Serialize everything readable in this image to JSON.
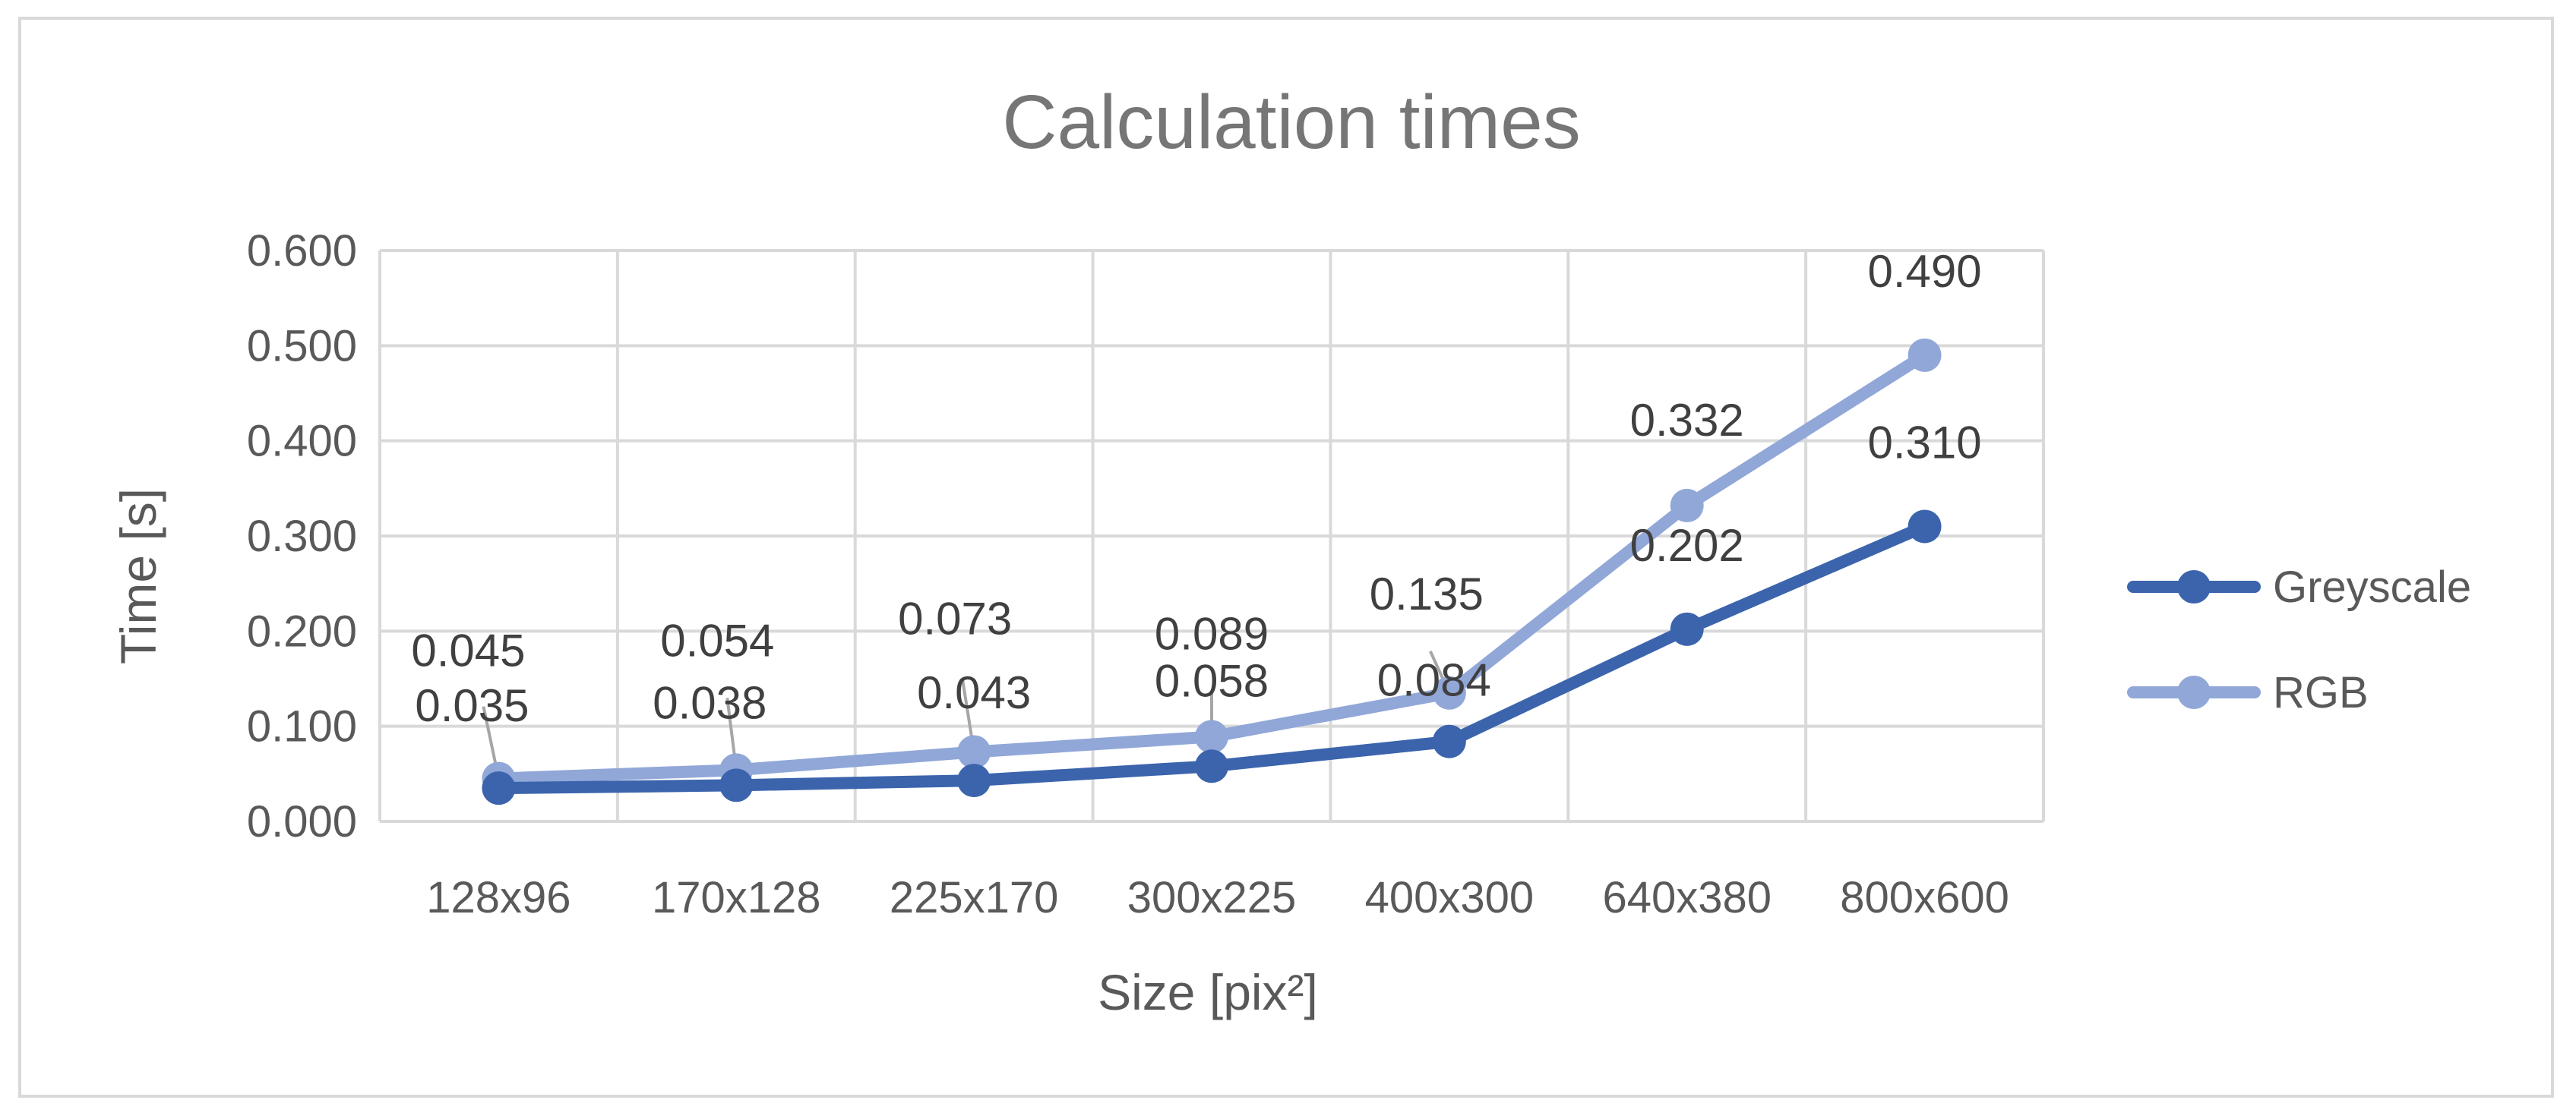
{
  "chart_data": {
    "type": "line",
    "title": "Calculation times",
    "xlabel": "Size [pix²]",
    "ylabel": "Time [s]",
    "categories": [
      "128x96",
      "170x128",
      "225x170",
      "300x225",
      "400x300",
      "640x380",
      "800x600"
    ],
    "ylim": [
      0,
      0.6
    ],
    "yticks": [
      "0.000",
      "0.100",
      "0.200",
      "0.300",
      "0.400",
      "0.500",
      "0.600"
    ],
    "grid": true,
    "legend_position": "right",
    "series": [
      {
        "name": "Greyscale",
        "color": "#3b64ad",
        "values": [
          0.035,
          0.038,
          0.043,
          0.058,
          0.084,
          0.202,
          0.31
        ],
        "labels": [
          "0.035",
          "0.038",
          "0.043",
          "0.058",
          "0.084",
          "0.202",
          "0.310"
        ]
      },
      {
        "name": "RGB",
        "color": "#91a7d8",
        "values": [
          0.045,
          0.054,
          0.073,
          0.089,
          0.135,
          0.332,
          0.49
        ],
        "labels": [
          "0.045",
          "0.054",
          "0.073",
          "0.089",
          "0.135",
          "0.332",
          "0.490"
        ]
      }
    ]
  }
}
